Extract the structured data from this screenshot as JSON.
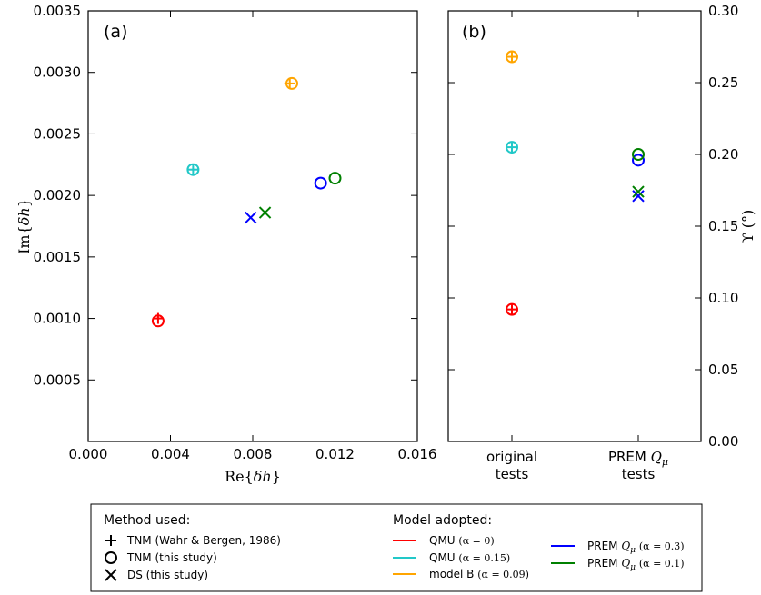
{
  "chart_data": [
    {
      "type": "scatter",
      "panel_label": "(a)",
      "xlabel": "Re{δh}",
      "ylabel": "Im{δh}",
      "xlim": [
        0.0,
        0.016
      ],
      "ylim": [
        0.0,
        0.0035
      ],
      "xticks": [
        "0.000",
        "0.004",
        "0.008",
        "0.012",
        "0.016"
      ],
      "yticks": [
        "0.0005",
        "0.0010",
        "0.0015",
        "0.0020",
        "0.0025",
        "0.0030",
        "0.0035"
      ],
      "series": [
        {
          "name": "QMU (α = 0)",
          "color": "#ff0000",
          "points": [
            {
              "method": "TNM (Wahr & Bergen, 1986)",
              "x": 0.0034,
              "y": 0.001
            },
            {
              "method": "TNM (this study)",
              "x": 0.0034,
              "y": 0.00098
            }
          ]
        },
        {
          "name": "QMU (α = 0.15)",
          "color": "#22c8c8",
          "points": [
            {
              "method": "TNM (Wahr & Bergen, 1986)",
              "x": 0.0051,
              "y": 0.00221
            },
            {
              "method": "TNM (this study)",
              "x": 0.0051,
              "y": 0.00221
            }
          ]
        },
        {
          "name": "model B (α = 0.09)",
          "color": "#ffa500",
          "points": [
            {
              "method": "TNM (Wahr & Bergen, 1986)",
              "x": 0.0098,
              "y": 0.00291
            },
            {
              "method": "TNM (this study)",
              "x": 0.0099,
              "y": 0.00291
            }
          ]
        },
        {
          "name": "PREM Q_μ (α = 0.3)",
          "color": "#0000ff",
          "points": [
            {
              "method": "TNM (this study)",
              "x": 0.0113,
              "y": 0.0021
            },
            {
              "method": "DS (this study)",
              "x": 0.0079,
              "y": 0.00182
            }
          ]
        },
        {
          "name": "PREM Q_μ (α = 0.1)",
          "color": "#008000",
          "points": [
            {
              "method": "TNM (this study)",
              "x": 0.012,
              "y": 0.00214
            },
            {
              "method": "DS (this study)",
              "x": 0.0086,
              "y": 0.00186
            }
          ]
        }
      ]
    },
    {
      "type": "scatter",
      "panel_label": "(b)",
      "ylabel": "ϒ (°)",
      "categories": [
        "original tests",
        "PREM Q_μ tests"
      ],
      "category_labels": [
        [
          "original",
          "tests"
        ],
        [
          "PREM ",
          "tests"
        ]
      ],
      "ylim": [
        0.0,
        0.3
      ],
      "yticks": [
        "0.00",
        "0.05",
        "0.10",
        "0.15",
        "0.20",
        "0.25",
        "0.30"
      ],
      "series": [
        {
          "name": "QMU (α = 0)",
          "color": "#ff0000",
          "points": [
            {
              "method": "TNM (Wahr & Bergen, 1986)",
              "category": "original tests",
              "y": 0.092
            },
            {
              "method": "TNM (this study)",
              "category": "original tests",
              "y": 0.092
            }
          ]
        },
        {
          "name": "QMU (α = 0.15)",
          "color": "#22c8c8",
          "points": [
            {
              "method": "TNM (Wahr & Bergen, 1986)",
              "category": "original tests",
              "y": 0.205
            },
            {
              "method": "TNM (this study)",
              "category": "original tests",
              "y": 0.205
            }
          ]
        },
        {
          "name": "model B (α = 0.09)",
          "color": "#ffa500",
          "points": [
            {
              "method": "TNM (Wahr & Bergen, 1986)",
              "category": "original tests",
              "y": 0.268
            },
            {
              "method": "TNM (this study)",
              "category": "original tests",
              "y": 0.268
            }
          ]
        },
        {
          "name": "PREM Q_μ (α = 0.3)",
          "color": "#0000ff",
          "points": [
            {
              "method": "TNM (this study)",
              "category": "PREM Q_μ tests",
              "y": 0.196
            },
            {
              "method": "DS (this study)",
              "category": "PREM Q_μ tests",
              "y": 0.171
            }
          ]
        },
        {
          "name": "PREM Q_μ (α = 0.1)",
          "color": "#008000",
          "points": [
            {
              "method": "TNM (this study)",
              "category": "PREM Q_μ tests",
              "y": 0.2
            },
            {
              "method": "DS (this study)",
              "category": "PREM Q_μ tests",
              "y": 0.174
            }
          ]
        }
      ]
    }
  ],
  "legend": {
    "method_title": "Method used:",
    "methods": [
      {
        "marker": "plus",
        "label": "TNM (Wahr & Bergen, 1986)"
      },
      {
        "marker": "circle",
        "label": "TNM (this study)"
      },
      {
        "marker": "x",
        "label": "DS (this study)"
      }
    ],
    "model_title": "Model adopted:",
    "models": [
      {
        "prefix": "QMU ",
        "alpha": "(α = 0)",
        "color": "#ff0000"
      },
      {
        "prefix": "QMU ",
        "alpha": "(α = 0.15)",
        "color": "#22c8c8"
      },
      {
        "prefix": "model B ",
        "alpha": "(α = 0.09)",
        "color": "#ffa500"
      },
      {
        "prefix": "PREM ",
        "alpha": "(α = 0.3)",
        "color": "#0000ff"
      },
      {
        "prefix": "PREM ",
        "alpha": "(α = 0.1)",
        "color": "#008000"
      }
    ]
  }
}
